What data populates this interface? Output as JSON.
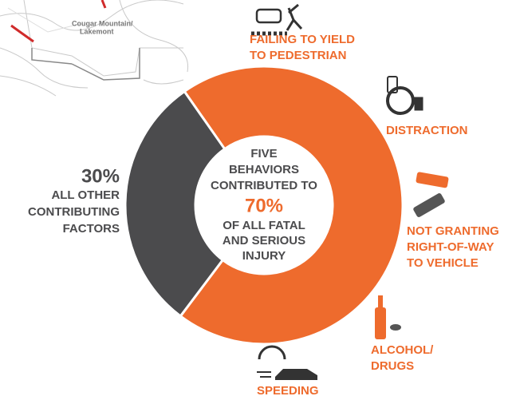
{
  "chart_data": {
    "type": "donut",
    "categories": [
      "FIVE BEHAVIORS CONTRIBUTED TO",
      "ALL OTHER CONTRIBUTING FACTORS"
    ],
    "values": [
      70,
      30
    ],
    "value_labels": [
      "70%",
      "30%"
    ],
    "colors": [
      "#ee6b2d",
      "#4b4b4d"
    ],
    "center_lines": [
      "FIVE",
      "BEHAVIORS",
      "CONTRIBUTED TO"
    ],
    "center_lines_after": [
      "OF ALL FATAL",
      "AND SERIOUS",
      "INJURY"
    ],
    "other_lines": [
      "ALL OTHER",
      "CONTRIBUTING",
      "FACTORS"
    ],
    "behaviors": [
      [
        "FAILING TO YIELD",
        "TO PEDESTRIAN"
      ],
      [
        "DISTRACTION"
      ],
      [
        "NOT GRANTING",
        "RIGHT-OF-WAY",
        "TO VEHICLE"
      ],
      [
        "ALCOHOL/",
        "DRUGS"
      ],
      [
        "SPEEDING"
      ]
    ],
    "map_label": [
      "Cougar Mountain/",
      "Lakemont"
    ]
  }
}
